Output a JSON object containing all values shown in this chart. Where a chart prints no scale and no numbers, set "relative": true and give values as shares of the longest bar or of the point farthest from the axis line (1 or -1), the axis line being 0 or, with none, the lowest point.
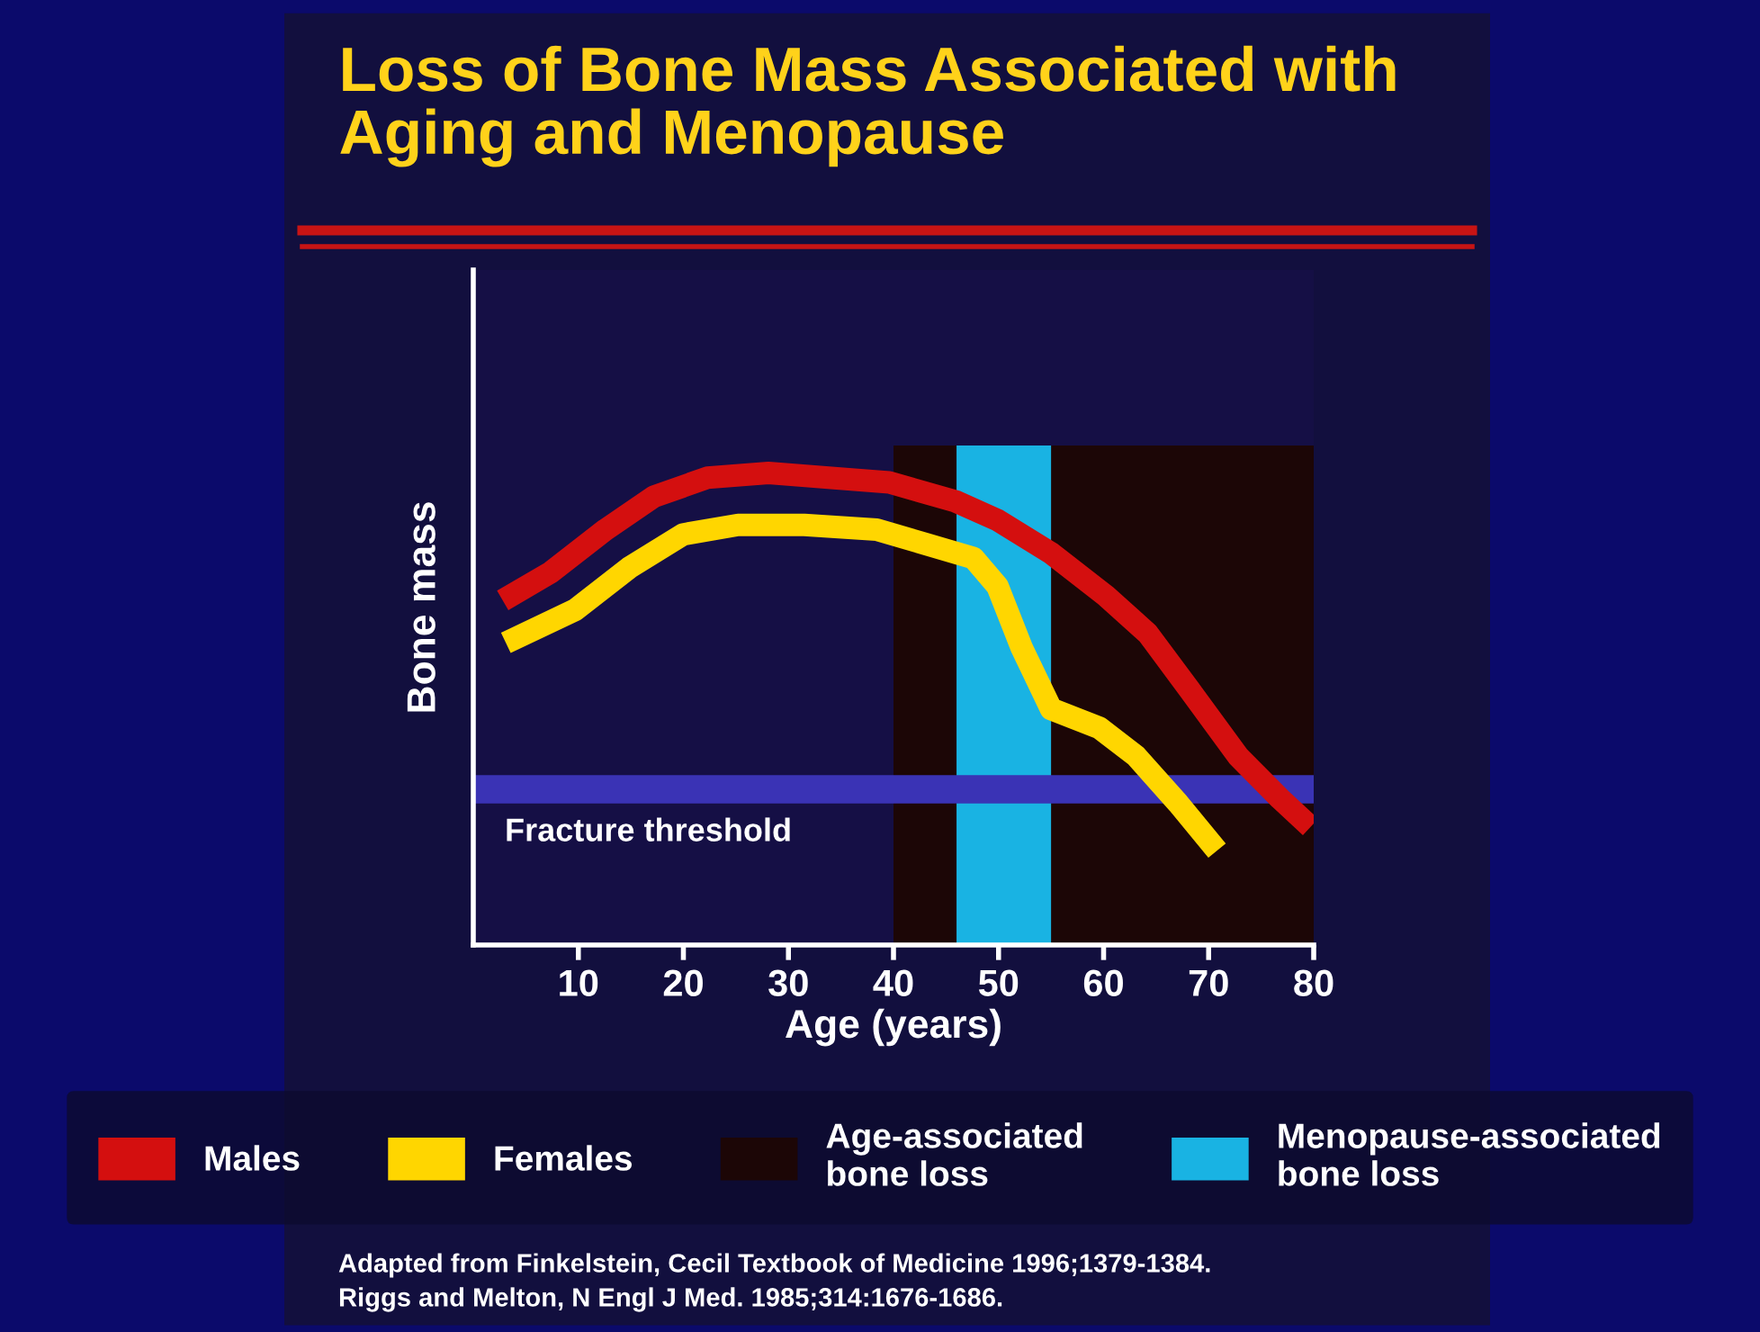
{
  "chart_data": {
    "type": "line",
    "title": "Loss of Bone Mass Associated with\nAging and Menopause",
    "xlabel": "Age (years)",
    "ylabel": "Bone mass",
    "relative": true,
    "xlim": [
      0,
      80
    ],
    "xticks": [
      10,
      20,
      30,
      40,
      50,
      60,
      70,
      80
    ],
    "series": [
      {
        "name": "Males",
        "color": "#d40f0f",
        "x": [
          2.8,
          7.4,
          12.6,
          17.2,
          22.3,
          28.1,
          33.8,
          39.6,
          45.9,
          49.9,
          55.0,
          60.2,
          64.2,
          68.2,
          72.8,
          76.8,
          79.7
        ],
        "values": [
          0.73,
          0.79,
          0.88,
          0.95,
          0.99,
          1.0,
          0.99,
          0.98,
          0.94,
          0.9,
          0.83,
          0.74,
          0.66,
          0.54,
          0.4,
          0.31,
          0.25
        ]
      },
      {
        "name": "Females",
        "color": "#ffd600",
        "x": [
          3.1,
          9.7,
          14.9,
          20.0,
          25.2,
          31.5,
          38.4,
          43.0,
          47.6,
          49.9,
          52.2,
          55.0,
          59.6,
          63.1,
          67.1,
          70.8
        ],
        "values": [
          0.64,
          0.71,
          0.8,
          0.87,
          0.89,
          0.89,
          0.88,
          0.85,
          0.82,
          0.76,
          0.63,
          0.5,
          0.46,
          0.4,
          0.3,
          0.2
        ]
      }
    ],
    "bands": [
      {
        "axis": "x",
        "from": 40,
        "to": 80,
        "label": "Age-associated\nbone loss",
        "color": "#1c0606"
      },
      {
        "axis": "x",
        "from": 46,
        "to": 55,
        "label": "Menopause-associated\nbone loss",
        "color": "#19b3e3"
      },
      {
        "axis": "y",
        "from": 0.3,
        "to": 0.36,
        "label": "Fracture threshold",
        "color": "#3a33b5"
      }
    ],
    "legend": "bottom",
    "grid": false,
    "marker": "none",
    "line_style": "solid",
    "annotations": [
      "Adapted from Finkelstein, Cecil Textbook of Medicine 1996;1379-1384.",
      "Riggs and Melton, N Engl J Med. 1985;314:1676-1686."
    ]
  }
}
